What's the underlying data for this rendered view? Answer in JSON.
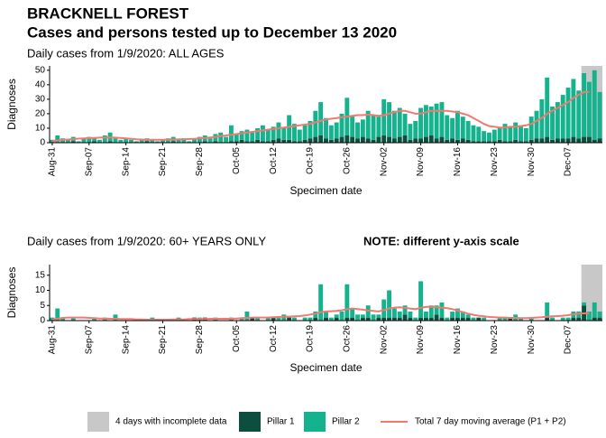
{
  "title": "BRACKNELL FOREST",
  "subtitle": "Cases and persons tested up to December 13 2020",
  "incomplete": {
    "label": "4 days with incomplete data",
    "days": 4,
    "color": "#c8c8c8"
  },
  "chart_data": [
    {
      "type": "bar",
      "subtitle": "Daily cases from 1/9/2020: ALL AGES",
      "xlabel": "Specimen date",
      "ylabel": "Diagnoses",
      "categories": [
        "Aug-31",
        null,
        null,
        null,
        null,
        null,
        null,
        "Sep-07",
        null,
        null,
        null,
        null,
        null,
        null,
        "Sep-14",
        null,
        null,
        null,
        null,
        null,
        null,
        "Sep-21",
        null,
        null,
        null,
        null,
        null,
        null,
        "Sep-28",
        null,
        null,
        null,
        null,
        null,
        null,
        "Oct-05",
        null,
        null,
        null,
        null,
        null,
        null,
        "Oct-12",
        null,
        null,
        null,
        null,
        null,
        null,
        "Oct-19",
        null,
        null,
        null,
        null,
        null,
        null,
        "Oct-26",
        null,
        null,
        null,
        null,
        null,
        null,
        "Nov-02",
        null,
        null,
        null,
        null,
        null,
        null,
        "Nov-09",
        null,
        null,
        null,
        null,
        null,
        null,
        "Nov-16",
        null,
        null,
        null,
        null,
        null,
        null,
        "Nov-23",
        null,
        null,
        null,
        null,
        null,
        null,
        "Nov-30",
        null,
        null,
        null,
        null,
        null,
        null,
        "Dec-07",
        null,
        null,
        null,
        null,
        null,
        null
      ],
      "series": [
        {
          "name": "Pillar 1",
          "color": "#0d4f3f",
          "values": [
            0,
            0,
            0,
            0,
            1,
            0,
            0,
            0,
            1,
            0,
            0,
            1,
            0,
            0,
            0,
            0,
            0,
            0,
            1,
            0,
            0,
            0,
            0,
            1,
            0,
            0,
            0,
            0,
            0,
            1,
            0,
            1,
            0,
            0,
            1,
            1,
            2,
            1,
            1,
            2,
            1,
            1,
            2,
            3,
            2,
            2,
            1,
            1,
            2,
            3,
            4,
            5,
            3,
            2,
            3,
            4,
            5,
            4,
            3,
            4,
            3,
            2,
            4,
            5,
            4,
            3,
            4,
            5,
            2,
            3,
            3,
            4,
            5,
            3,
            4,
            2,
            3,
            2,
            3,
            2,
            1,
            1,
            1,
            1,
            1,
            2,
            1,
            1,
            2,
            1,
            1,
            2,
            3,
            3,
            4,
            2,
            3,
            3,
            3,
            4,
            3,
            4,
            4,
            2,
            3
          ]
        },
        {
          "name": "Pillar 2",
          "color": "#14b38e",
          "values": [
            2,
            5,
            3,
            2,
            3,
            1,
            3,
            4,
            2,
            2,
            5,
            6,
            3,
            2,
            3,
            2,
            1,
            2,
            2,
            2,
            1,
            2,
            3,
            3,
            2,
            3,
            1,
            3,
            4,
            4,
            3,
            5,
            7,
            4,
            11,
            5,
            6,
            8,
            6,
            8,
            11,
            8,
            9,
            11,
            8,
            17,
            12,
            8,
            10,
            12,
            18,
            23,
            14,
            10,
            11,
            16,
            26,
            14,
            11,
            12,
            19,
            17,
            14,
            25,
            24,
            19,
            20,
            15,
            11,
            12,
            21,
            22,
            20,
            24,
            24,
            17,
            14,
            20,
            15,
            13,
            11,
            10,
            7,
            6,
            8,
            8,
            12,
            10,
            12,
            11,
            9,
            16,
            19,
            27,
            41,
            23,
            25,
            30,
            35,
            40,
            33,
            44,
            38,
            48,
            32
          ]
        },
        {
          "name": "Total 7 day moving average (P1 + P2)",
          "color": "#f07a72",
          "kind": "line",
          "values": [
            1,
            1.5,
            2,
            2.2,
            2.5,
            2.8,
            3,
            3.2,
            3.3,
            3.5,
            3.6,
            3.7,
            3.5,
            3.3,
            3,
            2.7,
            2.4,
            2.2,
            2,
            2,
            2,
            2,
            2.1,
            2.2,
            2.3,
            2.4,
            2.5,
            2.7,
            3,
            3.3,
            3.6,
            4,
            4.5,
            5,
            5.5,
            6,
            6.5,
            7,
            7.5,
            8,
            8.5,
            9,
            9.5,
            10,
            10.5,
            11,
            11.5,
            12,
            12.5,
            13,
            14,
            15,
            16,
            16.5,
            17,
            17.5,
            18,
            18.5,
            19,
            19,
            19.5,
            19,
            18.5,
            19,
            20,
            21,
            22,
            22,
            21,
            20,
            20,
            21,
            22,
            22,
            22,
            22,
            21.5,
            21,
            20,
            19,
            17,
            15,
            13,
            11.5,
            11,
            10.5,
            10.5,
            11,
            11,
            11.5,
            12,
            13,
            15,
            17,
            20,
            22,
            24,
            26,
            28,
            31,
            33,
            35,
            35,
            null,
            null
          ]
        }
      ],
      "ylim": [
        0,
        53
      ],
      "yticks": [
        0,
        10,
        20,
        30,
        40,
        50
      ]
    },
    {
      "type": "bar",
      "subtitle": "Daily cases from 1/9/2020: 60+ YEARS ONLY",
      "note": "NOTE: different y-axis scale",
      "xlabel": "Specimen date",
      "ylabel": "Diagnoses",
      "categories": [
        "Aug-31",
        null,
        null,
        null,
        null,
        null,
        null,
        "Sep-07",
        null,
        null,
        null,
        null,
        null,
        null,
        "Sep-14",
        null,
        null,
        null,
        null,
        null,
        null,
        "Sep-21",
        null,
        null,
        null,
        null,
        null,
        null,
        "Sep-28",
        null,
        null,
        null,
        null,
        null,
        null,
        "Oct-05",
        null,
        null,
        null,
        null,
        null,
        null,
        "Oct-12",
        null,
        null,
        null,
        null,
        null,
        null,
        "Oct-19",
        null,
        null,
        null,
        null,
        null,
        null,
        "Oct-26",
        null,
        null,
        null,
        null,
        null,
        null,
        "Nov-02",
        null,
        null,
        null,
        null,
        null,
        null,
        "Nov-09",
        null,
        null,
        null,
        null,
        null,
        null,
        "Nov-16",
        null,
        null,
        null,
        null,
        null,
        null,
        "Nov-23",
        null,
        null,
        null,
        null,
        null,
        null,
        "Nov-30",
        null,
        null,
        null,
        null,
        null,
        null,
        "Dec-07",
        null,
        null,
        null,
        null,
        null,
        null
      ],
      "series": [
        {
          "color": "#0d4f3f",
          "values": [
            0,
            0,
            0,
            0,
            0,
            0,
            0,
            0,
            0,
            0,
            0,
            0,
            0,
            0,
            0,
            0,
            0,
            0,
            0,
            0,
            0,
            0,
            0,
            0,
            0,
            0,
            0,
            1,
            0,
            1,
            0,
            0,
            0,
            0,
            0,
            0,
            0,
            0,
            1,
            0,
            0,
            0,
            1,
            0,
            0,
            1,
            0,
            0,
            0,
            0,
            1,
            0,
            1,
            0,
            1,
            0,
            1,
            1,
            0,
            1,
            1,
            0,
            1,
            1,
            1,
            1,
            1,
            2,
            1,
            0,
            1,
            1,
            1,
            2,
            1,
            0,
            1,
            1,
            1,
            1,
            0,
            1,
            0,
            0,
            0,
            0,
            0,
            1,
            0,
            0,
            0,
            0,
            0,
            0,
            1,
            0,
            0,
            0,
            0,
            1,
            1,
            5,
            0,
            1,
            1
          ]
        },
        {
          "color": "#14b38e",
          "values": [
            1,
            4,
            1,
            0,
            1,
            0,
            0,
            0,
            1,
            0,
            1,
            0,
            2,
            0,
            0,
            0,
            0,
            0,
            0,
            1,
            0,
            0,
            0,
            0,
            1,
            0,
            0,
            0,
            1,
            0,
            0,
            1,
            0,
            0,
            1,
            0,
            1,
            3,
            0,
            1,
            0,
            1,
            0,
            1,
            2,
            0,
            1,
            0,
            1,
            1,
            2,
            12,
            2,
            1,
            1,
            3,
            11,
            3,
            2,
            1,
            4,
            2,
            1,
            6,
            9,
            3,
            2,
            3,
            2,
            1,
            12,
            2,
            4,
            3,
            5,
            1,
            2,
            3,
            2,
            1,
            1,
            0,
            1,
            0,
            0,
            1,
            1,
            0,
            2,
            1,
            0,
            1,
            0,
            0,
            5,
            1,
            0,
            1,
            1,
            2,
            2,
            1,
            3,
            5,
            2
          ]
        },
        {
          "color": "#f07a72",
          "kind": "line",
          "values": [
            0.3,
            0.6,
            0.9,
            1,
            1,
            1,
            1,
            0.9,
            0.8,
            0.7,
            0.7,
            0.6,
            0.6,
            0.5,
            0.5,
            0.5,
            0.4,
            0.4,
            0.3,
            0.3,
            0.3,
            0.3,
            0.3,
            0.4,
            0.4,
            0.4,
            0.5,
            0.5,
            0.5,
            0.5,
            0.6,
            0.6,
            0.6,
            0.6,
            0.6,
            0.7,
            0.8,
            0.9,
            1,
            1,
            1,
            1,
            1.1,
            1.2,
            1.3,
            1.3,
            1.4,
            1.5,
            1.7,
            2,
            2.3,
            2.8,
            3,
            3.1,
            3.2,
            3.4,
            3.8,
            4,
            3.8,
            3.6,
            3.3,
            3.2,
            3,
            3.5,
            4,
            4.3,
            4.4,
            4.2,
            4,
            3.8,
            4.2,
            4.5,
            4.6,
            4.4,
            4.3,
            4.1,
            3.8,
            3.3,
            2.8,
            2.3,
            1.9,
            1.6,
            1.4,
            1.2,
            1.1,
            1,
            1,
            0.9,
            0.9,
            0.8,
            0.8,
            0.9,
            1,
            1.1,
            1.3,
            1.4,
            1.5,
            1.6,
            1.8,
            2.1,
            2.3,
            2.4,
            2.5,
            null,
            null
          ]
        }
      ],
      "ylim": [
        0,
        18.5
      ],
      "yticks": [
        0,
        5,
        10,
        15
      ]
    }
  ]
}
